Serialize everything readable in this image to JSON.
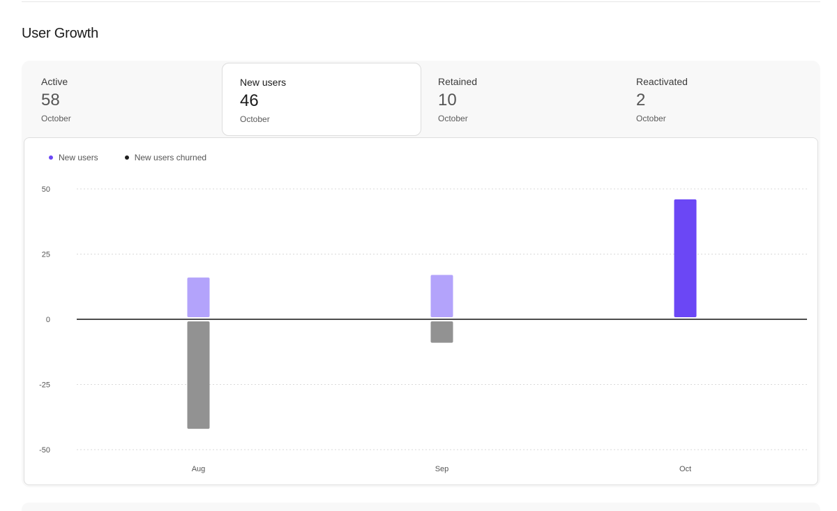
{
  "section": {
    "title": "User Growth"
  },
  "stats": [
    {
      "label": "Active",
      "value": "58",
      "period": "October",
      "active": false
    },
    {
      "label": "New users",
      "value": "46",
      "period": "October",
      "active": true
    },
    {
      "label": "Retained",
      "value": "10",
      "period": "October",
      "active": false
    },
    {
      "label": "Reactivated",
      "value": "2",
      "period": "October",
      "active": false
    }
  ],
  "legend": [
    {
      "name": "New users",
      "color": "#6b47f5"
    },
    {
      "name": "New users churned",
      "color": "#1f1f1f"
    }
  ],
  "colors": {
    "accent": "#6b47f5",
    "accent_light": "#b3a3fb",
    "churn": "#929292",
    "zero_line": "#111111",
    "grid": "#d9d9d9",
    "tick": "#555555"
  },
  "chart_data": {
    "type": "bar",
    "title": "",
    "xlabel": "",
    "ylabel": "",
    "categories": [
      "Aug",
      "Sep",
      "Oct"
    ],
    "series": [
      {
        "name": "New users",
        "values": [
          16,
          17,
          46
        ],
        "colors": [
          "#b3a3fb",
          "#b3a3fb",
          "#6b47f5"
        ]
      },
      {
        "name": "New users churned",
        "values": [
          -42,
          -9,
          0
        ],
        "color": "#929292"
      }
    ],
    "ylim": [
      -50,
      50
    ],
    "yticks": [
      50,
      25,
      0,
      -25,
      -50
    ],
    "grid": true,
    "legend": "top-left"
  }
}
